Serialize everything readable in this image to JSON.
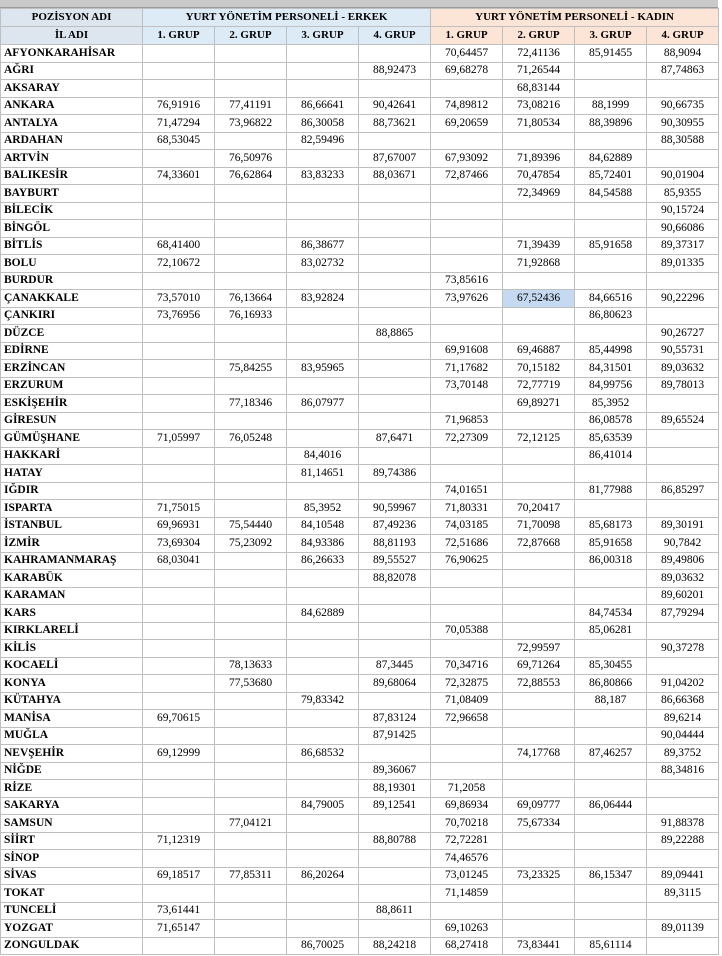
{
  "table": {
    "header": {
      "position": "POZİSYON ADI",
      "male": "YURT YÖNETİM PERSONELİ - ERKEK",
      "female": "YURT YÖNETİM PERSONELİ - KADIN",
      "province": "İL ADI",
      "groups": [
        "1. GRUP",
        "2. GRUP",
        "3. GRUP",
        "4. GRUP",
        "1. GRUP",
        "2. GRUP",
        "3. GRUP",
        "4. GRUP"
      ]
    },
    "rows": [
      [
        "AFYONKARAHİSAR",
        null,
        null,
        null,
        null,
        "70,64457",
        "72,41136",
        "85,91455",
        "88,9094"
      ],
      [
        "AĞRI",
        null,
        null,
        null,
        "88,92473",
        "69,68278",
        "71,26544",
        null,
        "87,74863"
      ],
      [
        "AKSARAY",
        null,
        null,
        null,
        null,
        null,
        "68,83144",
        null,
        null
      ],
      [
        "ANKARA",
        "76,91916",
        "77,41191",
        "86,66641",
        "90,42641",
        "74,89812",
        "73,08216",
        "88,1999",
        "90,66735"
      ],
      [
        "ANTALYA",
        "71,47294",
        "73,96822",
        "86,30058",
        "88,73621",
        "69,20659",
        "71,80534",
        "88,39896",
        "90,30955"
      ],
      [
        "ARDAHAN",
        "68,53045",
        null,
        "82,59496",
        null,
        null,
        null,
        null,
        "88,30588"
      ],
      [
        "ARTVİN",
        null,
        "76,50976",
        null,
        "87,67007",
        "67,93092",
        "71,89396",
        "84,62889",
        null
      ],
      [
        "BALIKESİR",
        "74,33601",
        "76,62864",
        "83,83233",
        "88,03671",
        "72,87466",
        "70,47854",
        "85,72401",
        "90,01904"
      ],
      [
        "BAYBURT",
        null,
        null,
        null,
        null,
        null,
        "72,34969",
        "84,54588",
        "85,9355"
      ],
      [
        "BİLECİK",
        null,
        null,
        null,
        null,
        null,
        null,
        null,
        "90,15724"
      ],
      [
        "BİNGÖL",
        null,
        null,
        null,
        null,
        null,
        null,
        null,
        "90,66086"
      ],
      [
        "BİTLİS",
        "68,41400",
        null,
        "86,38677",
        null,
        null,
        "71,39439",
        "85,91658",
        "89,37317"
      ],
      [
        "BOLU",
        "72,10672",
        null,
        "83,02732",
        null,
        null,
        "71,92868",
        null,
        "89,01335"
      ],
      [
        "BURDUR",
        null,
        null,
        null,
        null,
        "73,85616",
        null,
        null,
        null
      ],
      [
        "ÇANAKKALE",
        "73,57010",
        "76,13664",
        "83,92824",
        null,
        "73,97626",
        "67,52436",
        "84,66516",
        "90,22296"
      ],
      [
        "ÇANKIRI",
        "73,76956",
        "76,16933",
        null,
        null,
        null,
        null,
        "86,80623",
        null
      ],
      [
        "DÜZCE",
        null,
        null,
        null,
        "88,8865",
        null,
        null,
        null,
        "90,26727"
      ],
      [
        "EDİRNE",
        null,
        null,
        null,
        null,
        "69,91608",
        "69,46887",
        "85,44998",
        "90,55731"
      ],
      [
        "ERZİNCAN",
        null,
        "75,84255",
        "83,95965",
        null,
        "71,17682",
        "70,15182",
        "84,31501",
        "89,03632"
      ],
      [
        "ERZURUM",
        null,
        null,
        null,
        null,
        "73,70148",
        "72,77719",
        "84,99756",
        "89,78013"
      ],
      [
        "ESKİŞEHİR",
        null,
        "77,18346",
        "86,07977",
        null,
        null,
        "69,89271",
        "85,3952",
        null
      ],
      [
        "GİRESUN",
        null,
        null,
        null,
        null,
        "71,96853",
        null,
        "86,08578",
        "89,65524"
      ],
      [
        "GÜMÜŞHANE",
        "71,05997",
        "76,05248",
        null,
        "87,6471",
        "72,27309",
        "72,12125",
        "85,63539",
        null
      ],
      [
        "HAKKARİ",
        null,
        null,
        "84,4016",
        null,
        null,
        null,
        "86,41014",
        null
      ],
      [
        "HATAY",
        null,
        null,
        "81,14651",
        "89,74386",
        null,
        null,
        null,
        null
      ],
      [
        "IĞDIR",
        null,
        null,
        null,
        null,
        "74,01651",
        null,
        "81,77988",
        "86,85297"
      ],
      [
        "ISPARTA",
        "71,75015",
        null,
        "85,3952",
        "90,59967",
        "71,80331",
        "70,20417",
        null,
        null
      ],
      [
        "İSTANBUL",
        "69,96931",
        "75,54440",
        "84,10548",
        "87,49236",
        "74,03185",
        "71,70098",
        "85,68173",
        "89,30191"
      ],
      [
        "İZMİR",
        "73,69304",
        "75,23092",
        "84,93386",
        "88,81193",
        "72,51686",
        "72,87668",
        "85,91658",
        "90,7842"
      ],
      [
        "KAHRAMANMARAŞ",
        "68,03041",
        null,
        "86,26633",
        "89,55527",
        "76,90625",
        null,
        "86,00318",
        "89,49806"
      ],
      [
        "KARABÜK",
        null,
        null,
        null,
        "88,82078",
        null,
        null,
        null,
        "89,03632"
      ],
      [
        "KARAMAN",
        null,
        null,
        null,
        null,
        null,
        null,
        null,
        "89,60201"
      ],
      [
        "KARS",
        null,
        null,
        "84,62889",
        null,
        null,
        null,
        "84,74534",
        "87,79294"
      ],
      [
        "KIRKLARELİ",
        null,
        null,
        null,
        null,
        "70,05388",
        null,
        "85,06281",
        null
      ],
      [
        "KİLİS",
        null,
        null,
        null,
        null,
        null,
        "72,99597",
        null,
        "90,37278"
      ],
      [
        "KOCAELİ",
        null,
        "78,13633",
        null,
        "87,3445",
        "70,34716",
        "69,71264",
        "85,30455",
        null
      ],
      [
        "KONYA",
        null,
        "77,53680",
        null,
        "89,68064",
        "72,32875",
        "72,88553",
        "86,80866",
        "91,04202"
      ],
      [
        "KÜTAHYA",
        null,
        null,
        "79,83342",
        null,
        "71,08409",
        null,
        "88,187",
        "86,66368"
      ],
      [
        "MANİSA",
        "69,70615",
        null,
        null,
        "87,83124",
        "72,96658",
        null,
        null,
        "89,6214"
      ],
      [
        "MUĞLA",
        null,
        null,
        null,
        "87,91425",
        null,
        null,
        null,
        "90,04444"
      ],
      [
        "NEVŞEHİR",
        "69,12999",
        null,
        "86,68532",
        null,
        null,
        "74,17768",
        "87,46257",
        "89,3752"
      ],
      [
        "NİĞDE",
        null,
        null,
        null,
        "89,36067",
        null,
        null,
        null,
        "88,34816"
      ],
      [
        "RİZE",
        null,
        null,
        null,
        "88,19301",
        "71,2058",
        null,
        null,
        null
      ],
      [
        "SAKARYA",
        null,
        null,
        "84,79005",
        "89,12541",
        "69,86934",
        "69,09777",
        "86,06444",
        null
      ],
      [
        "SAMSUN",
        null,
        "77,04121",
        null,
        null,
        "70,70218",
        "75,67334",
        null,
        "91,88378"
      ],
      [
        "SİİRT",
        "71,12319",
        null,
        null,
        "88,80788",
        "72,72281",
        null,
        null,
        "89,22288"
      ],
      [
        "SİNOP",
        null,
        null,
        null,
        null,
        "74,46576",
        null,
        null,
        null
      ],
      [
        "SİVAS",
        "69,18517",
        "77,85311",
        "86,20264",
        null,
        "73,01245",
        "73,23325",
        "86,15347",
        "89,09441"
      ],
      [
        "TOKAT",
        null,
        null,
        null,
        null,
        "71,14859",
        null,
        null,
        "89,3115"
      ],
      [
        "TUNCELİ",
        "73,61441",
        null,
        null,
        "88,8611",
        null,
        null,
        null,
        null
      ],
      [
        "YOZGAT",
        "71,65147",
        null,
        null,
        null,
        "69,10263",
        null,
        null,
        "89,01139"
      ],
      [
        "ZONGULDAK",
        null,
        null,
        "86,70025",
        "88,24218",
        "68,27418",
        "73,83441",
        "85,61114",
        null
      ]
    ]
  }
}
